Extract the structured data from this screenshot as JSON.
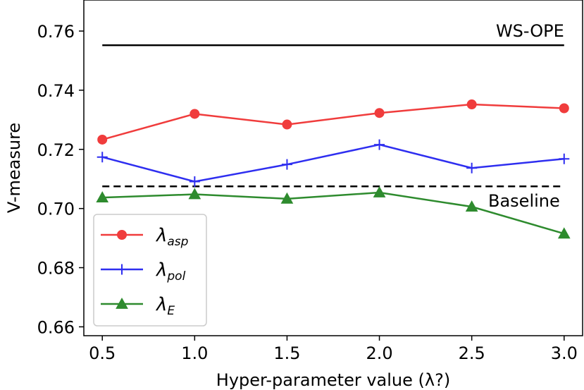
{
  "chart_data": {
    "type": "line",
    "xlabel": "Hyper-parameter value (λ?)",
    "ylabel": "V-measure",
    "x": [
      0.5,
      1.0,
      1.5,
      2.0,
      2.5,
      3.0
    ],
    "xticks": [
      "0.5",
      "1.0",
      "1.5",
      "2.0",
      "2.5",
      "3.0"
    ],
    "yticks": [
      "0.66",
      "0.68",
      "0.70",
      "0.72",
      "0.74",
      "0.76"
    ],
    "ytick_values": [
      0.66,
      0.68,
      0.7,
      0.72,
      0.74,
      0.76
    ],
    "xlim": [
      0.4,
      3.1
    ],
    "ylim": [
      0.657,
      0.7705
    ],
    "series": [
      {
        "name": "λ",
        "sub": "asp",
        "color": "#f03c3c",
        "marker": "circle",
        "values": [
          0.7233,
          0.732,
          0.7284,
          0.7323,
          0.7352,
          0.7339
        ]
      },
      {
        "name": "λ",
        "sub": "pol",
        "color": "#2e2ef0",
        "marker": "plus",
        "values": [
          0.7174,
          0.7091,
          0.7149,
          0.7216,
          0.7137,
          0.7168
        ]
      },
      {
        "name": "λ",
        "sub": "E",
        "color": "#2e8b2e",
        "marker": "triangle",
        "values": [
          0.7037,
          0.7048,
          0.7033,
          0.7054,
          0.7006,
          0.6915
        ]
      }
    ],
    "reference_lines": [
      {
        "label": "WS-OPE",
        "y": 0.7552,
        "style": "solid",
        "color": "#000000"
      },
      {
        "label": "Baseline",
        "y": 0.7075,
        "style": "dashed",
        "color": "#000000"
      }
    ],
    "legend": "lower-left",
    "grid": false
  }
}
